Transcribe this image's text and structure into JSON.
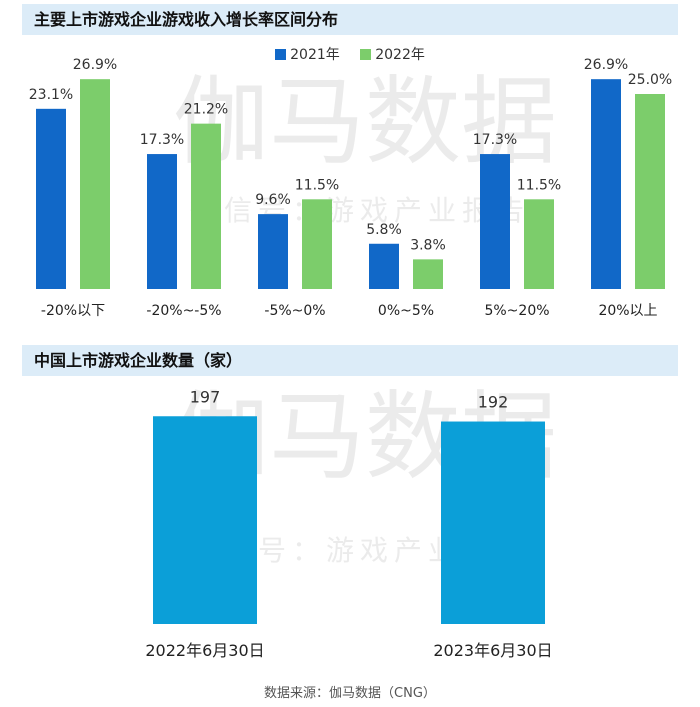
{
  "colors": {
    "series_2021": "#1168c8",
    "series_2022": "#7ccd6b",
    "count_bar": "#0b9fd8",
    "header_bg": "#dcecf8"
  },
  "watermark": {
    "main": "伽马数据",
    "sub": "微信号：游戏产业报告"
  },
  "source": "数据来源：伽马数据（CNG）",
  "chart_data": [
    {
      "type": "bar",
      "title": "主要上市游戏企业游戏收入增长率区间分布",
      "categories": [
        "-20%以下",
        "-20%~-5%",
        "-5%~0%",
        "0%~5%",
        "5%~20%",
        "20%以上"
      ],
      "series": [
        {
          "name": "2021年",
          "values": [
            23.1,
            17.3,
            9.6,
            5.8,
            17.3,
            26.9
          ]
        },
        {
          "name": "2022年",
          "values": [
            26.9,
            21.2,
            11.5,
            3.8,
            11.5,
            25.0
          ]
        }
      ],
      "value_labels": [
        [
          "23.1%",
          "17.3%",
          "9.6%",
          "5.8%",
          "17.3%",
          "26.9%"
        ],
        [
          "26.9%",
          "21.2%",
          "11.5%",
          "3.8%",
          "11.5%",
          "25.0%"
        ]
      ],
      "legend": "top-center",
      "grid": false,
      "ylim": [
        0,
        30
      ]
    },
    {
      "type": "bar",
      "title": "中国上市游戏企业数量（家）",
      "categories": [
        "2022年6月30日",
        "2023年6月30日"
      ],
      "values": [
        197,
        192
      ],
      "ylim": [
        0,
        220
      ],
      "grid": false
    }
  ]
}
